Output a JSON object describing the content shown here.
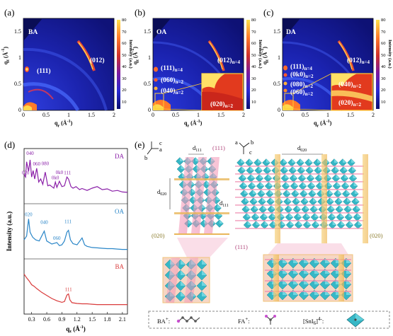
{
  "panels": {
    "a": {
      "label": "(a)",
      "sample": "BA",
      "peaks": [
        "(111)",
        "(012)"
      ]
    },
    "b": {
      "label": "(b)",
      "sample": "OA",
      "peaks": [
        "(012)",
        "(111)",
        "(060)",
        "(040)",
        "(020)"
      ],
      "sub": [
        "n=4",
        "n=4",
        "n=2",
        "n=2",
        "n=2"
      ]
    },
    "c": {
      "label": "(c)",
      "sample": "DA",
      "peaks": [
        "(012)",
        "(111)",
        "(0k0)",
        "(080)",
        "(060)",
        "(040)",
        "(020)"
      ],
      "sub": [
        "n=4",
        "n=4",
        "n=2",
        "n=2",
        "n=2",
        "n=2",
        "n=2"
      ]
    },
    "d": {
      "label": "(d)"
    },
    "e": {
      "label": "(e)"
    }
  },
  "giwaxs": {
    "ylabel_q": "q",
    "ylabel_sub": "z",
    "ylabel_unit": "(Å",
    "xlabel_q": "q",
    "xlabel_sub": "r",
    "xlabel_unit": "(Å",
    "unit_exp": "-1",
    "xticks": [
      "0",
      "0.5",
      "1",
      "1.5",
      "2"
    ],
    "yticks": [
      "0",
      "0.5",
      "1",
      "1.5"
    ],
    "cbar_ticks": [
      "80",
      "70",
      "60",
      "50",
      "40",
      "30",
      "20",
      "10"
    ],
    "cbar_label": "Intensity (a.u.)"
  },
  "chart_data": {
    "type": "line",
    "ylabel": "Intensity (a.u.)",
    "xlabel": "q",
    "xlabel_sub": "z",
    "xlabel_unit": "(Å",
    "xlabel_exp": "-1",
    "xticks": [
      "0.3",
      "0.6",
      "0.9",
      "1.2",
      "1.5",
      "1.8",
      "2.1"
    ],
    "xlim": [
      0.15,
      2.2
    ],
    "series": [
      {
        "name": "DA",
        "color": "#8a1fa8",
        "peak_labels": [
          [
            "020",
            0.18
          ],
          [
            "040",
            0.27
          ],
          [
            "060",
            0.4
          ],
          [
            "080",
            0.57
          ],
          [
            "0k0",
            0.77
          ],
          [
            "0k0",
            0.85
          ],
          [
            "111",
            1.01
          ]
        ],
        "x": [
          0.15,
          0.18,
          0.2,
          0.24,
          0.27,
          0.3,
          0.33,
          0.36,
          0.4,
          0.44,
          0.48,
          0.52,
          0.57,
          0.62,
          0.66,
          0.7,
          0.74,
          0.77,
          0.8,
          0.85,
          0.9,
          0.95,
          1.0,
          1.03,
          1.08,
          1.12,
          1.18,
          1.25,
          1.3,
          1.4,
          1.5,
          1.6,
          1.7,
          1.8,
          1.9,
          2.0,
          2.1,
          2.2
        ],
        "y": [
          0.62,
          0.55,
          0.95,
          0.7,
          1.0,
          0.55,
          0.72,
          0.5,
          0.78,
          0.42,
          0.5,
          0.36,
          0.68,
          0.32,
          0.34,
          0.3,
          0.26,
          0.42,
          0.28,
          0.44,
          0.3,
          0.32,
          0.55,
          0.5,
          0.3,
          0.26,
          0.3,
          0.22,
          0.25,
          0.2,
          0.26,
          0.3,
          0.22,
          0.24,
          0.18,
          0.2,
          0.16,
          0.15
        ]
      },
      {
        "name": "OA",
        "color": "#2a86c8",
        "peak_labels": [
          [
            "020",
            0.24
          ],
          [
            "040",
            0.55
          ],
          [
            "060",
            0.8
          ],
          [
            "111",
            1.02
          ]
        ],
        "x": [
          0.15,
          0.2,
          0.24,
          0.27,
          0.32,
          0.38,
          0.45,
          0.5,
          0.55,
          0.6,
          0.7,
          0.8,
          0.85,
          0.9,
          0.95,
          1.0,
          1.03,
          1.07,
          1.12,
          1.2,
          1.3,
          1.35,
          1.4,
          1.5,
          1.6,
          1.7,
          1.8,
          1.9,
          2.0,
          2.1,
          2.2
        ],
        "y": [
          0.35,
          0.45,
          0.9,
          0.55,
          0.42,
          0.35,
          0.32,
          0.45,
          0.58,
          0.32,
          0.24,
          0.28,
          0.2,
          0.22,
          0.32,
          0.55,
          0.6,
          0.35,
          0.25,
          0.22,
          0.4,
          0.22,
          0.18,
          0.15,
          0.14,
          0.13,
          0.12,
          0.12,
          0.11,
          0.1,
          0.1
        ]
      },
      {
        "name": "BA",
        "color": "#d93a3a",
        "peak_labels": [
          [
            "111",
            1.03
          ]
        ],
        "x": [
          0.15,
          0.2,
          0.25,
          0.3,
          0.35,
          0.4,
          0.5,
          0.6,
          0.7,
          0.8,
          0.9,
          0.95,
          1.0,
          1.03,
          1.06,
          1.1,
          1.2,
          1.3,
          1.4,
          1.5,
          1.6,
          1.7,
          1.8,
          1.9,
          2.0,
          2.1,
          2.2
        ],
        "y": [
          0.9,
          0.8,
          0.72,
          0.62,
          0.58,
          0.52,
          0.42,
          0.34,
          0.26,
          0.2,
          0.16,
          0.18,
          0.35,
          0.38,
          0.22,
          0.15,
          0.13,
          0.12,
          0.12,
          0.11,
          0.1,
          0.1,
          0.1,
          0.1,
          0.1,
          0.1,
          0.1
        ]
      }
    ]
  },
  "schematic": {
    "left": {
      "d111": "d",
      "d111_sub": "111",
      "d020": "d",
      "d020_sub": "020",
      "p111": "(111)",
      "p020": "(020)",
      "axes": [
        "c",
        "a",
        "b"
      ]
    },
    "right": {
      "d020": "d",
      "d020_sub": "020",
      "d111": "d",
      "d111_sub": "111",
      "p111": "(111)",
      "p020": "(020)",
      "axes": [
        "a",
        "b",
        "c"
      ]
    }
  },
  "legend": {
    "ba": "BA",
    "ba_sup": "+",
    "ba_tail": ":",
    "fa": "FA",
    "fa_sup": "+",
    "fa_tail": ":",
    "sni": "[SnI",
    "sni_sub": "6",
    "sni_close": "]",
    "sni_sup": "4-",
    "sni_tail": ":"
  },
  "colors": {
    "giwaxs_bg": "#161a8a",
    "giwaxs_hot": "#ffcc33",
    "da": "#8a1fa8",
    "oa": "#2a86c8",
    "ba": "#d93a3a",
    "octa": "#36b7c6",
    "plane_pink": "#f29bb8",
    "plane_gold": "#f2c15c"
  }
}
